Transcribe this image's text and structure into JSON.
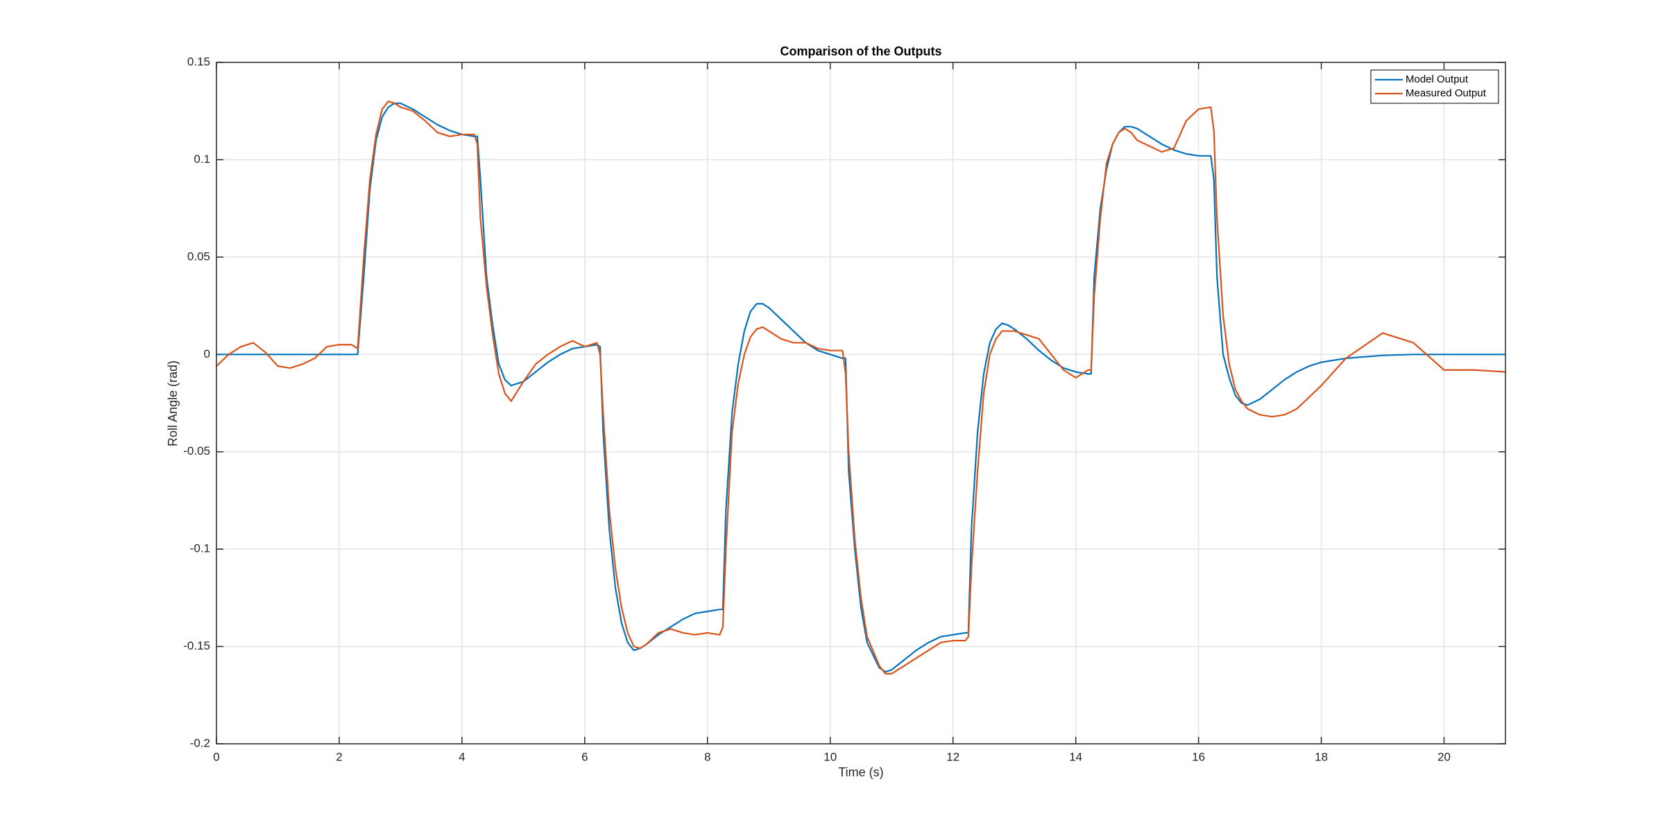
{
  "chart_data": {
    "type": "line",
    "title": "Comparison of the Outputs",
    "xlabel": "Time (s)",
    "ylabel": "Roll Angle (rad)",
    "x": [
      0,
      0.2,
      0.4,
      0.6,
      0.8,
      1.0,
      1.2,
      1.4,
      1.6,
      1.8,
      2.0,
      2.2,
      2.3,
      2.4,
      2.5,
      2.6,
      2.7,
      2.8,
      2.9,
      3.0,
      3.2,
      3.4,
      3.6,
      3.8,
      4.0,
      4.2,
      4.25,
      4.3,
      4.4,
      4.5,
      4.6,
      4.7,
      4.8,
      5.0,
      5.2,
      5.4,
      5.6,
      5.8,
      6.0,
      6.2,
      6.25,
      6.3,
      6.4,
      6.5,
      6.6,
      6.7,
      6.8,
      6.9,
      7.0,
      7.2,
      7.4,
      7.6,
      7.8,
      8.0,
      8.2,
      8.25,
      8.3,
      8.4,
      8.5,
      8.6,
      8.7,
      8.8,
      8.9,
      9.0,
      9.2,
      9.4,
      9.6,
      9.8,
      10.0,
      10.2,
      10.25,
      10.3,
      10.4,
      10.5,
      10.6,
      10.8,
      10.9,
      11.0,
      11.2,
      11.4,
      11.6,
      11.8,
      12.0,
      12.2,
      12.25,
      12.3,
      12.4,
      12.5,
      12.6,
      12.7,
      12.8,
      12.9,
      13.0,
      13.2,
      13.4,
      13.6,
      13.8,
      14.0,
      14.2,
      14.25,
      14.3,
      14.4,
      14.5,
      14.6,
      14.7,
      14.8,
      14.9,
      15.0,
      15.2,
      15.4,
      15.6,
      15.8,
      16.0,
      16.2,
      16.25,
      16.3,
      16.4,
      16.5,
      16.6,
      16.7,
      16.8,
      17.0,
      17.2,
      17.4,
      17.6,
      17.8,
      18.0,
      18.4,
      19.0,
      19.5,
      20.0,
      20.5,
      21.0
    ],
    "series": [
      {
        "name": "Model Output",
        "color": "#0072BD",
        "values": [
          0,
          0,
          0,
          0,
          0,
          0,
          0,
          0,
          0,
          0,
          0,
          0,
          0,
          0.04,
          0.085,
          0.11,
          0.122,
          0.127,
          0.129,
          0.129,
          0.126,
          0.122,
          0.118,
          0.115,
          0.113,
          0.112,
          0.112,
          0.09,
          0.04,
          0.015,
          -0.005,
          -0.013,
          -0.016,
          -0.014,
          -0.009,
          -0.004,
          0.0,
          0.003,
          0.004,
          0.005,
          0.004,
          -0.04,
          -0.09,
          -0.12,
          -0.138,
          -0.148,
          -0.152,
          -0.151,
          -0.149,
          -0.144,
          -0.14,
          -0.136,
          -0.133,
          -0.132,
          -0.131,
          -0.131,
          -0.08,
          -0.03,
          -0.005,
          0.012,
          0.022,
          0.026,
          0.026,
          0.024,
          0.018,
          0.012,
          0.006,
          0.002,
          0.0,
          -0.002,
          -0.002,
          -0.06,
          -0.1,
          -0.13,
          -0.148,
          -0.161,
          -0.163,
          -0.162,
          -0.157,
          -0.152,
          -0.148,
          -0.145,
          -0.144,
          -0.143,
          -0.143,
          -0.09,
          -0.04,
          -0.01,
          0.006,
          0.013,
          0.016,
          0.015,
          0.013,
          0.008,
          0.002,
          -0.003,
          -0.007,
          -0.009,
          -0.01,
          -0.01,
          0.04,
          0.075,
          0.095,
          0.108,
          0.114,
          0.117,
          0.117,
          0.116,
          0.112,
          0.108,
          0.105,
          0.103,
          0.102,
          0.102,
          0.09,
          0.04,
          0.0,
          -0.012,
          -0.021,
          -0.025,
          -0.026,
          -0.023,
          -0.018,
          -0.013,
          -0.009,
          -0.006,
          -0.004,
          -0.002,
          -0.0005,
          0,
          0,
          0,
          0
        ]
      },
      {
        "name": "Measured Output",
        "color": "#D95319",
        "values": [
          -0.006,
          0.0,
          0.004,
          0.006,
          0.001,
          -0.006,
          -0.007,
          -0.005,
          -0.002,
          0.004,
          0.005,
          0.005,
          0.003,
          0.05,
          0.09,
          0.113,
          0.126,
          0.13,
          0.129,
          0.127,
          0.125,
          0.12,
          0.114,
          0.112,
          0.113,
          0.113,
          0.108,
          0.07,
          0.035,
          0.01,
          -0.01,
          -0.02,
          -0.024,
          -0.014,
          -0.005,
          0.0,
          0.004,
          0.007,
          0.004,
          0.006,
          0.0,
          -0.03,
          -0.08,
          -0.11,
          -0.13,
          -0.143,
          -0.15,
          -0.151,
          -0.149,
          -0.143,
          -0.141,
          -0.143,
          -0.144,
          -0.143,
          -0.144,
          -0.14,
          -0.1,
          -0.04,
          -0.015,
          0.0,
          0.009,
          0.013,
          0.014,
          0.012,
          0.008,
          0.006,
          0.006,
          0.003,
          0.002,
          0.002,
          -0.01,
          -0.05,
          -0.095,
          -0.125,
          -0.145,
          -0.16,
          -0.164,
          -0.164,
          -0.16,
          -0.156,
          -0.152,
          -0.148,
          -0.147,
          -0.147,
          -0.145,
          -0.11,
          -0.06,
          -0.02,
          0.0,
          0.008,
          0.012,
          0.012,
          0.012,
          0.01,
          0.008,
          0.0,
          -0.008,
          -0.012,
          -0.008,
          -0.008,
          0.03,
          0.07,
          0.098,
          0.108,
          0.114,
          0.116,
          0.114,
          0.11,
          0.107,
          0.104,
          0.106,
          0.12,
          0.126,
          0.127,
          0.115,
          0.07,
          0.02,
          -0.005,
          -0.018,
          -0.024,
          -0.028,
          -0.031,
          -0.032,
          -0.031,
          -0.028,
          -0.022,
          -0.016,
          -0.002,
          0.011,
          0.006,
          -0.008,
          -0.008,
          -0.009
        ]
      }
    ],
    "xlim": [
      0,
      21
    ],
    "ylim": [
      -0.2,
      0.15
    ],
    "xticks": [
      0,
      2,
      4,
      6,
      8,
      10,
      12,
      14,
      16,
      18,
      20
    ],
    "yticks": [
      -0.2,
      -0.15,
      -0.1,
      -0.05,
      0,
      0.05,
      0.1,
      0.15
    ],
    "grid": true,
    "legend": "northeast"
  }
}
